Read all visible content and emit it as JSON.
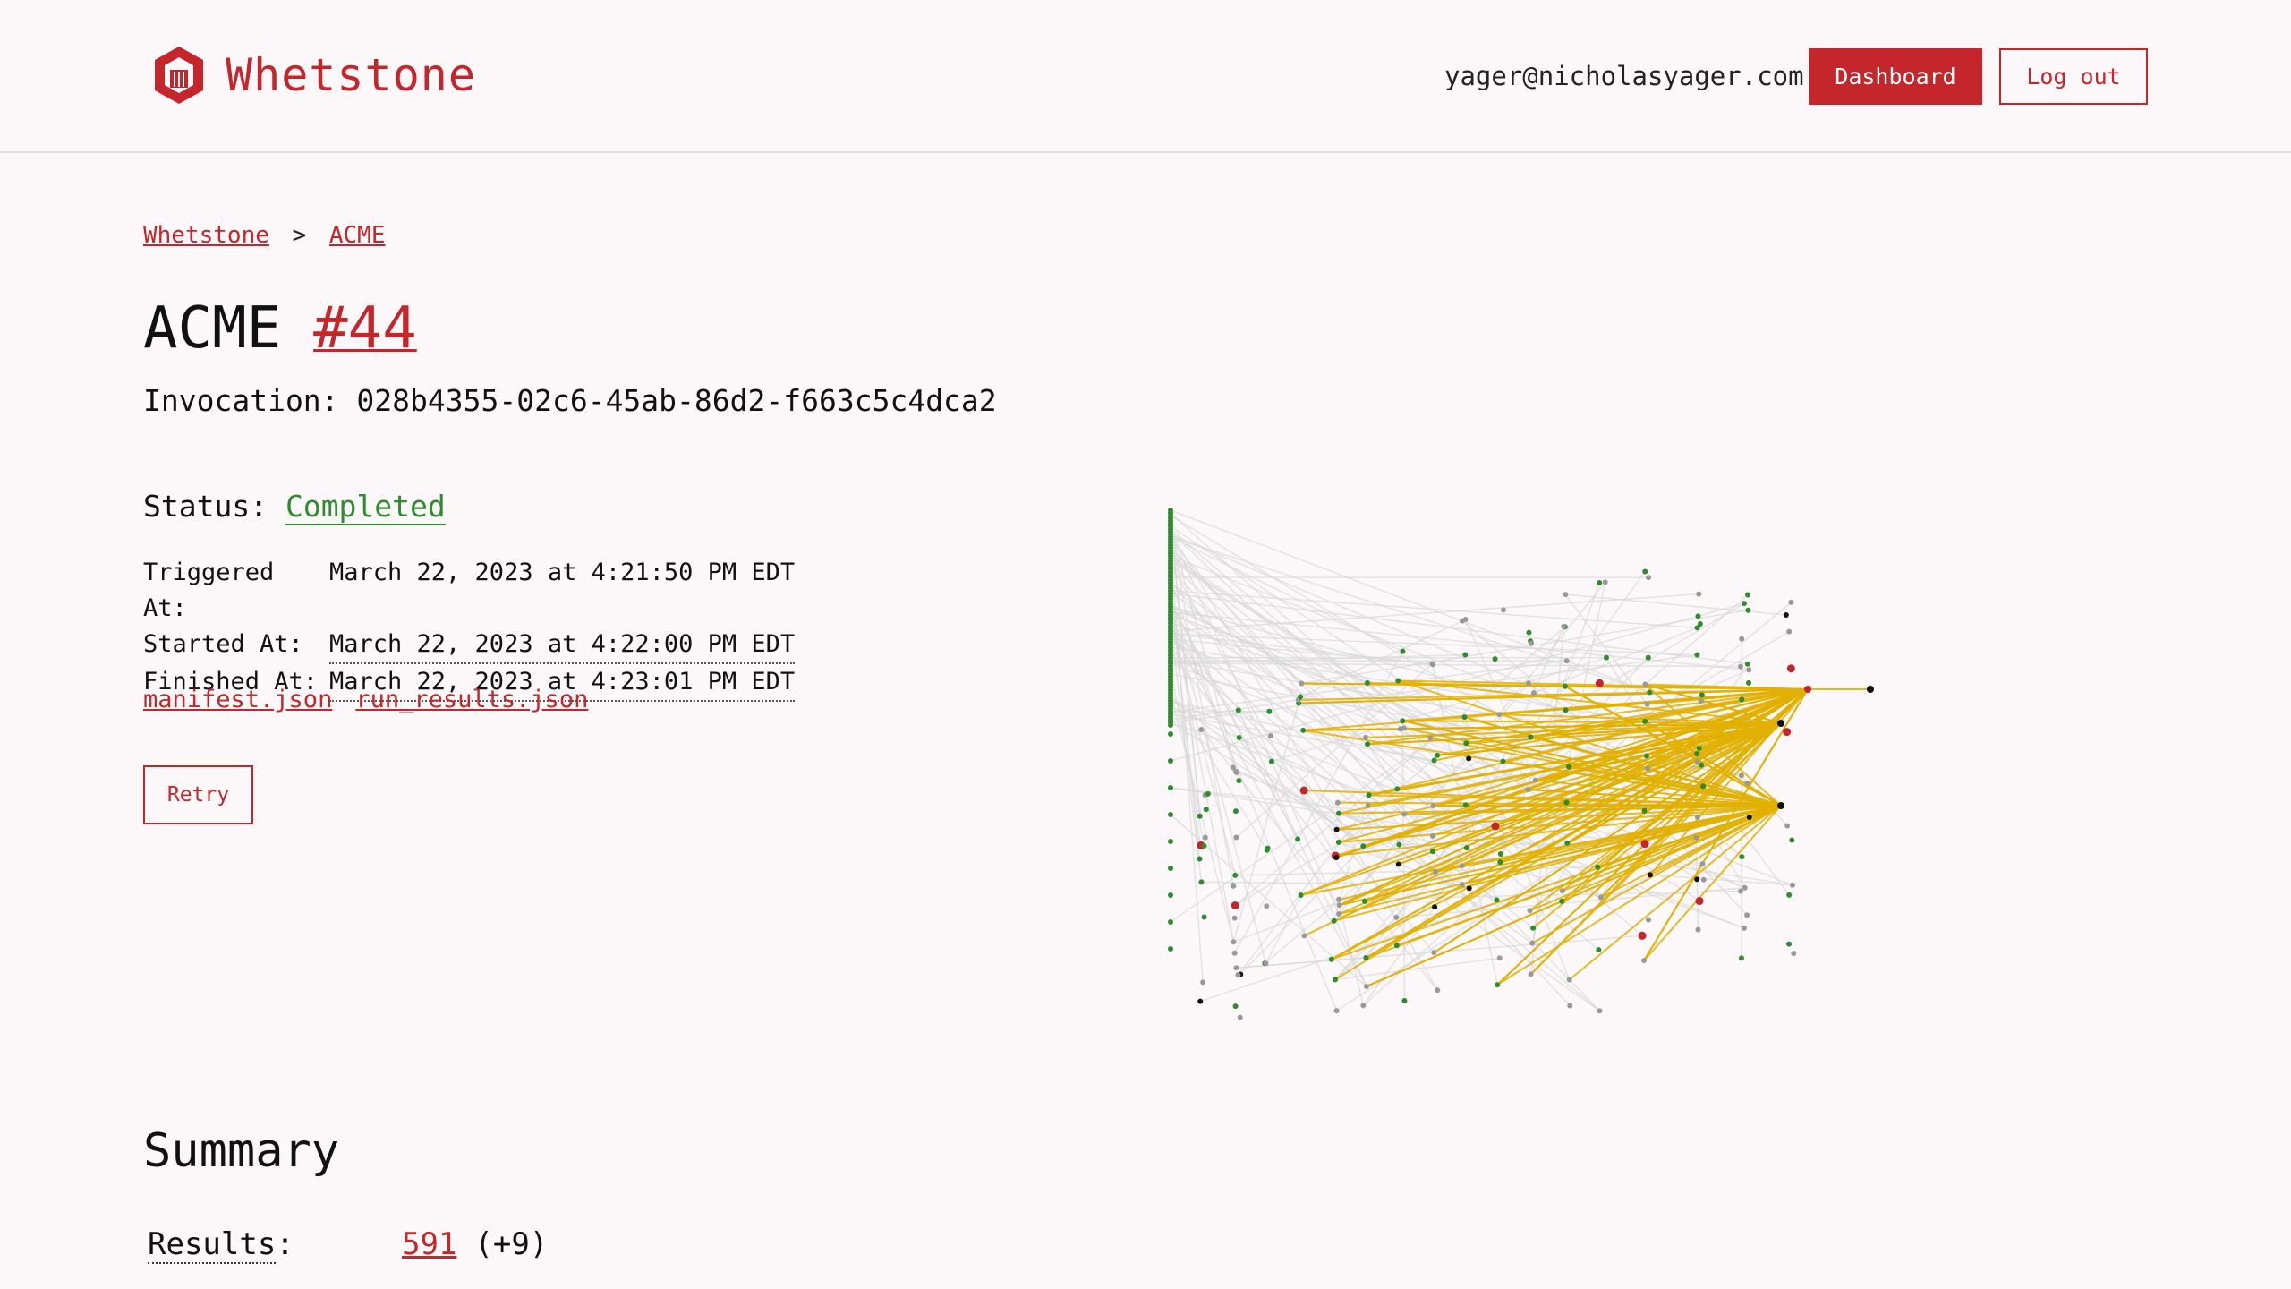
{
  "header": {
    "brand": "Whetstone",
    "user_email": "yager@nicholasyager.com",
    "dashboard_label": "Dashboard",
    "logout_label": "Log out"
  },
  "breadcrumb": {
    "root": "Whetstone",
    "separator": ">",
    "current": "ACME"
  },
  "title": {
    "project": "ACME",
    "run_number": "#44"
  },
  "invocation": {
    "label": "Invocation:",
    "id": "028b4355-02c6-45ab-86d2-f663c5c4dca2"
  },
  "status": {
    "label": "Status:",
    "value": "Completed"
  },
  "times": {
    "triggered_label": "Triggered At:",
    "triggered_value": "March 22, 2023 at 4:21:50 PM EDT",
    "started_label": "Started At:",
    "started_value": "March 22, 2023 at 4:22:00 PM EDT",
    "finished_label": "Finished At:",
    "finished_value": "March 22, 2023 at 4:23:01 PM EDT"
  },
  "artifacts": {
    "manifest": "manifest.json",
    "run_results": "run_results.json"
  },
  "retry_label": "Retry",
  "summary": {
    "title": "Summary",
    "results_label": "Results",
    "results_colon": ":",
    "results_value": "591",
    "results_delta": "(+9)"
  },
  "colors": {
    "accent": "#c4262b",
    "success": "#2e8b2e",
    "highlight_edge": "#e0b000",
    "node_gray": "#999999",
    "edge_gray": "#d9d9d9"
  }
}
